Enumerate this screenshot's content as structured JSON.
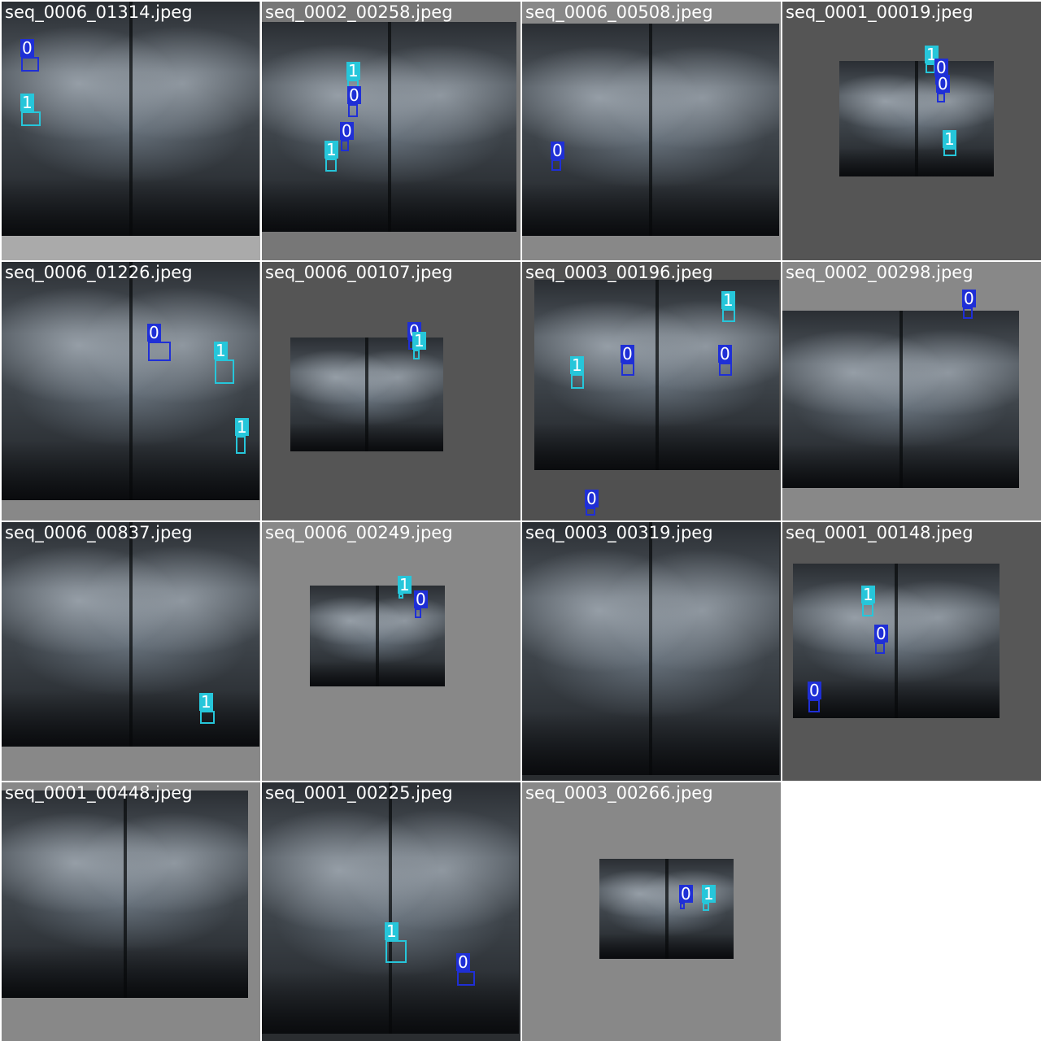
{
  "colors": {
    "class_0": "#1f2fd6",
    "class_1": "#26c6da"
  },
  "tiles": [
    {
      "file": "seq_0006_01314.jpeg",
      "bg": "#aaaaaa",
      "detections": [
        {
          "cls": "0"
        },
        {
          "cls": "1"
        }
      ]
    },
    {
      "file": "seq_0002_00258.jpeg",
      "bg": "#777777",
      "detections": [
        {
          "cls": "1"
        },
        {
          "cls": "0"
        },
        {
          "cls": "0"
        },
        {
          "cls": "1"
        }
      ]
    },
    {
      "file": "seq_0006_00508.jpeg",
      "bg": "#888888",
      "detections": [
        {
          "cls": "0"
        }
      ]
    },
    {
      "file": "seq_0001_00019.jpeg",
      "bg": "#555555",
      "detections": [
        {
          "cls": "1"
        },
        {
          "cls": "0"
        },
        {
          "cls": "0"
        },
        {
          "cls": "1"
        }
      ]
    },
    {
      "file": "seq_0006_01226.jpeg",
      "bg": "#888888",
      "detections": [
        {
          "cls": "0"
        },
        {
          "cls": "1"
        },
        {
          "cls": "1"
        }
      ]
    },
    {
      "file": "seq_0006_00107.jpeg",
      "bg": "#555555",
      "detections": [
        {
          "cls": "0"
        },
        {
          "cls": "1"
        }
      ]
    },
    {
      "file": "seq_0003_00196.jpeg",
      "bg": "#505050",
      "detections": [
        {
          "cls": "1"
        },
        {
          "cls": "1"
        },
        {
          "cls": "0"
        },
        {
          "cls": "0"
        },
        {
          "cls": "0"
        }
      ]
    },
    {
      "file": "seq_0002_00298.jpeg",
      "bg": "#888888",
      "detections": [
        {
          "cls": "0"
        }
      ]
    },
    {
      "file": "seq_0006_00837.jpeg",
      "bg": "#888888",
      "detections": [
        {
          "cls": "1"
        }
      ]
    },
    {
      "file": "seq_0006_00249.jpeg",
      "bg": "#888888",
      "detections": [
        {
          "cls": "1"
        },
        {
          "cls": "0"
        }
      ]
    },
    {
      "file": "seq_0003_00319.jpeg",
      "bg": "#2a2d30",
      "detections": []
    },
    {
      "file": "seq_0001_00148.jpeg",
      "bg": "#575757",
      "detections": [
        {
          "cls": "1"
        },
        {
          "cls": "0"
        },
        {
          "cls": "0"
        }
      ]
    },
    {
      "file": "seq_0001_00448.jpeg",
      "bg": "#888888",
      "detections": []
    },
    {
      "file": "seq_0001_00225.jpeg",
      "bg": "#2a2d30",
      "detections": [
        {
          "cls": "1"
        },
        {
          "cls": "0"
        }
      ]
    },
    {
      "file": "seq_0003_00266.jpeg",
      "bg": "#888888",
      "detections": [
        {
          "cls": "0"
        },
        {
          "cls": "1"
        }
      ]
    }
  ]
}
